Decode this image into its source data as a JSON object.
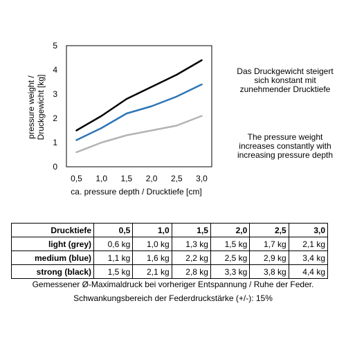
{
  "chart_data": {
    "type": "line",
    "x": [
      0.5,
      1.0,
      1.5,
      2.0,
      2.5,
      3.0
    ],
    "x_tick_labels": [
      "0,5",
      "1,0",
      "1,5",
      "2,0",
      "2,5",
      "3,0"
    ],
    "y_ticks": [
      0,
      1,
      2,
      3,
      4,
      5
    ],
    "xlim": [
      0.3,
      3.2
    ],
    "ylim": [
      0,
      5
    ],
    "xlabel": "ca. pressure depth / Drucktiefe [cm]",
    "ylabel_line1": "pressure weight /",
    "ylabel_line2": "Druckgewicht [kg]",
    "grid": false,
    "series": [
      {
        "values": [
          0.6,
          1.0,
          1.3,
          1.5,
          1.7,
          2.1
        ],
        "color": "#b3b3b3"
      },
      {
        "values": [
          1.1,
          1.6,
          2.2,
          2.5,
          2.9,
          3.4
        ],
        "color": "#2e75b6"
      },
      {
        "values": [
          1.5,
          2.1,
          2.8,
          3.3,
          3.8,
          4.4
        ],
        "color": "#000000"
      }
    ]
  },
  "notes": {
    "de": "Das Druckgewicht steigert sich konstant mit zunehmender Drucktiefe",
    "en": "The pressure weight increases constantly with increasing pressure depth"
  },
  "table": {
    "header": [
      "Drucktiefe",
      "0,5",
      "1,0",
      "1,5",
      "2,0",
      "2,5",
      "3,0"
    ],
    "rows": [
      [
        "light (grey)",
        "0,6 kg",
        "1,0 kg",
        "1,3 kg",
        "1,5 kg",
        "1,7 kg",
        "2,1 kg"
      ],
      [
        "medium (blue)",
        "1,1 kg",
        "1,6 kg",
        "2,2 kg",
        "2,5 kg",
        "2,9 kg",
        "3,4 kg"
      ],
      [
        "strong (black)",
        "1,5 kg",
        "2,1 kg",
        "2,8 kg",
        "3,3 kg",
        "3,8 kg",
        "4,4 kg"
      ]
    ]
  },
  "footnotes": {
    "line1": "Gemessener Ø-Maximaldruck bei vorheriger Entspannung / Ruhe der Feder.",
    "line2": "Schwankungsbereich der Federdruckstärke (+/-): 15%"
  }
}
